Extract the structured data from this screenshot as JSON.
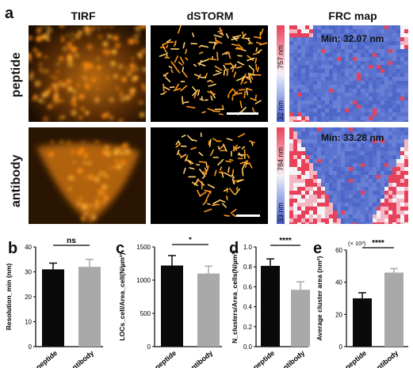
{
  "panel_letters": {
    "a": "a",
    "b": "b",
    "c": "c",
    "d": "d",
    "e": "e"
  },
  "column_titles": {
    "tirf": "TIRF",
    "dstorm": "dSTORM",
    "frc": "FRC map"
  },
  "row_labels": {
    "top": "peptide",
    "bottom": "antibody"
  },
  "colorbars": {
    "top": {
      "max": "757 nm",
      "min": "32 nm"
    },
    "bottom": {
      "max": "784 nm",
      "min": "33 nm"
    }
  },
  "frc_min": {
    "top": "Min: 32.07 nm",
    "bottom": "Min: 33.28 nm"
  },
  "colors": {
    "peptide_bar": "#0a0a0a",
    "antibody_bar": "#a9a9a9",
    "frc_blue": "#4e67c9",
    "frc_red": "#e8425a",
    "tirf_glow": "#ff9a1a"
  },
  "chart_data": [
    {
      "type": "bar",
      "categories": [
        "peptide",
        "antibody"
      ],
      "values": [
        31,
        32
      ],
      "errors": [
        2.5,
        3
      ],
      "ylabel": "Resolution_min (nm)",
      "ylim": [
        0,
        40
      ],
      "yticks": [
        "0",
        "10",
        "20",
        "30",
        "40"
      ],
      "significance": "ns"
    },
    {
      "type": "bar",
      "categories": [
        "peptide",
        "antibody"
      ],
      "values": [
        1220,
        1100
      ],
      "errors": [
        150,
        110
      ],
      "ylabel": "LOCs_cell/Area_cell(N/µm²)",
      "ylim": [
        0,
        1500
      ],
      "yticks": [
        "0",
        "500",
        "1000",
        "1500"
      ],
      "significance": "*"
    },
    {
      "type": "bar",
      "categories": [
        "peptide",
        "antibody"
      ],
      "values": [
        0.81,
        0.57
      ],
      "errors": [
        0.07,
        0.08
      ],
      "ylabel": "N_clusters/Area_cells(N/µm²)",
      "ylim": [
        0,
        1.0
      ],
      "yticks": [
        "0.0",
        "0.2",
        "0.4",
        "0.6",
        "0.8",
        "1.0"
      ],
      "significance": "****"
    },
    {
      "type": "bar",
      "categories": [
        "peptide",
        "antibody"
      ],
      "values": [
        30,
        46
      ],
      "errors": [
        3.5,
        2.5
      ],
      "ylabel": "Average cluster area (nm²)",
      "ylim": [
        0,
        60
      ],
      "yticks": [
        "0",
        "20",
        "40",
        "60"
      ],
      "significance": "****",
      "exponent": "(× 10³)"
    }
  ]
}
